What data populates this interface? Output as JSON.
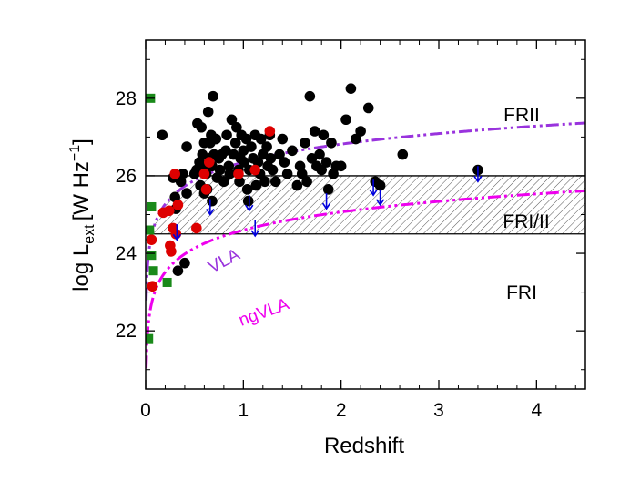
{
  "chart_data": {
    "type": "scatter",
    "xlabel": "Redshift",
    "ylabel": {
      "main": "log L",
      "sub": "ext",
      "unit": "[W Hz",
      "sup": "−1",
      "close": "]"
    },
    "xlim": [
      0,
      4.5
    ],
    "ylim": [
      20.5,
      29.5
    ],
    "xticks": [
      0,
      1,
      2,
      3,
      4
    ],
    "yticks": [
      22,
      24,
      26,
      28
    ],
    "hlines": [
      24.5,
      26.0
    ],
    "region_labels": [
      "FRII",
      "FRI/II",
      "FRI"
    ],
    "curve_labels": [
      "VLA",
      "ngVLA"
    ],
    "colors": {
      "black_points": "#000000",
      "red_points": "#dd0000",
      "green_squares": "#1a8a1a",
      "upper_limit_arrows": "#0000dd",
      "vla_curve": "#9933dd",
      "ngvla_curve": "#ee00ee"
    },
    "series": [
      {
        "marker": "circle",
        "color": "black_points",
        "points": [
          [
            0.17,
            27.05
          ],
          [
            0.28,
            25.95
          ],
          [
            0.3,
            25.45
          ],
          [
            0.31,
            25.15
          ],
          [
            0.33,
            23.55
          ],
          [
            0.36,
            25.85
          ],
          [
            0.38,
            26.05
          ],
          [
            0.4,
            23.75
          ],
          [
            0.42,
            25.55
          ],
          [
            0.42,
            26.75
          ],
          [
            0.5,
            26.05
          ],
          [
            0.52,
            26.15
          ],
          [
            0.53,
            27.35
          ],
          [
            0.55,
            26.35
          ],
          [
            0.56,
            25.75
          ],
          [
            0.57,
            27.25
          ],
          [
            0.58,
            26.55
          ],
          [
            0.6,
            26.85
          ],
          [
            0.6,
            25.55
          ],
          [
            0.61,
            26.25
          ],
          [
            0.62,
            26.05
          ],
          [
            0.63,
            25.65
          ],
          [
            0.64,
            27.65
          ],
          [
            0.65,
            26.45
          ],
          [
            0.66,
            26.85
          ],
          [
            0.67,
            27.05
          ],
          [
            0.68,
            26.25
          ],
          [
            0.68,
            25.35
          ],
          [
            0.69,
            28.05
          ],
          [
            0.7,
            26.55
          ],
          [
            0.72,
            26.95
          ],
          [
            0.73,
            25.95
          ],
          [
            0.75,
            26.45
          ],
          [
            0.76,
            26.15
          ],
          [
            0.78,
            26.55
          ],
          [
            0.8,
            25.85
          ],
          [
            0.82,
            26.65
          ],
          [
            0.83,
            27.05
          ],
          [
            0.85,
            26.25
          ],
          [
            0.86,
            26.05
          ],
          [
            0.88,
            27.45
          ],
          [
            0.9,
            26.55
          ],
          [
            0.92,
            26.85
          ],
          [
            0.93,
            27.25
          ],
          [
            0.95,
            26.15
          ],
          [
            0.96,
            25.85
          ],
          [
            0.97,
            26.45
          ],
          [
            0.98,
            27.05
          ],
          [
            1.0,
            26.65
          ],
          [
            1.01,
            26.35
          ],
          [
            1.03,
            26.95
          ],
          [
            1.04,
            25.65
          ],
          [
            1.05,
            25.35
          ],
          [
            1.06,
            26.15
          ],
          [
            1.08,
            26.75
          ],
          [
            1.1,
            26.45
          ],
          [
            1.12,
            27.05
          ],
          [
            1.13,
            25.75
          ],
          [
            1.15,
            26.35
          ],
          [
            1.17,
            26.05
          ],
          [
            1.18,
            26.95
          ],
          [
            1.2,
            26.55
          ],
          [
            1.22,
            25.85
          ],
          [
            1.24,
            26.75
          ],
          [
            1.25,
            26.25
          ],
          [
            1.27,
            27.05
          ],
          [
            1.28,
            26.45
          ],
          [
            1.3,
            26.15
          ],
          [
            1.33,
            25.85
          ],
          [
            1.37,
            26.55
          ],
          [
            1.4,
            26.95
          ],
          [
            1.42,
            26.35
          ],
          [
            1.45,
            26.05
          ],
          [
            1.5,
            26.65
          ],
          [
            1.55,
            25.75
          ],
          [
            1.58,
            26.25
          ],
          [
            1.6,
            26.05
          ],
          [
            1.63,
            26.85
          ],
          [
            1.65,
            25.85
          ],
          [
            1.68,
            28.05
          ],
          [
            1.7,
            26.45
          ],
          [
            1.73,
            27.15
          ],
          [
            1.75,
            26.25
          ],
          [
            1.78,
            26.55
          ],
          [
            1.8,
            26.15
          ],
          [
            1.82,
            27.05
          ],
          [
            1.85,
            26.35
          ],
          [
            1.87,
            25.65
          ],
          [
            1.9,
            26.85
          ],
          [
            1.92,
            26.05
          ],
          [
            1.95,
            26.25
          ],
          [
            2.0,
            26.25
          ],
          [
            2.05,
            27.45
          ],
          [
            2.1,
            28.25
          ],
          [
            2.15,
            26.95
          ],
          [
            2.2,
            27.15
          ],
          [
            2.28,
            27.75
          ],
          [
            2.35,
            25.85
          ],
          [
            2.4,
            25.75
          ],
          [
            2.63,
            26.55
          ],
          [
            3.4,
            26.15
          ]
        ]
      },
      {
        "marker": "circle",
        "color": "red_points",
        "points": [
          [
            0.06,
            24.35
          ],
          [
            0.07,
            23.15
          ],
          [
            0.18,
            25.05
          ],
          [
            0.24,
            25.1
          ],
          [
            0.25,
            24.2
          ],
          [
            0.26,
            24.05
          ],
          [
            0.28,
            24.65
          ],
          [
            0.3,
            26.05
          ],
          [
            0.31,
            24.5
          ],
          [
            0.33,
            25.25
          ],
          [
            0.52,
            24.65
          ],
          [
            0.6,
            26.05
          ],
          [
            0.62,
            25.65
          ],
          [
            0.65,
            26.35
          ],
          [
            0.95,
            26.05
          ],
          [
            1.12,
            26.15
          ],
          [
            1.27,
            27.15
          ]
        ]
      },
      {
        "marker": "square",
        "color": "green_squares",
        "points": [
          [
            0.05,
            28.0
          ],
          [
            0.06,
            25.2
          ],
          [
            0.04,
            24.6
          ],
          [
            0.06,
            23.95
          ],
          [
            0.08,
            23.55
          ],
          [
            0.22,
            23.25
          ],
          [
            0.03,
            21.8
          ]
        ]
      },
      {
        "marker": "upper-limit",
        "color": "upper_limit_arrows",
        "points": [
          [
            0.32,
            24.75
          ],
          [
            0.66,
            25.4
          ],
          [
            1.06,
            25.5
          ],
          [
            1.12,
            24.85
          ],
          [
            1.85,
            25.55
          ],
          [
            2.33,
            25.9
          ],
          [
            2.4,
            25.65
          ],
          [
            3.4,
            26.25
          ]
        ]
      }
    ]
  }
}
